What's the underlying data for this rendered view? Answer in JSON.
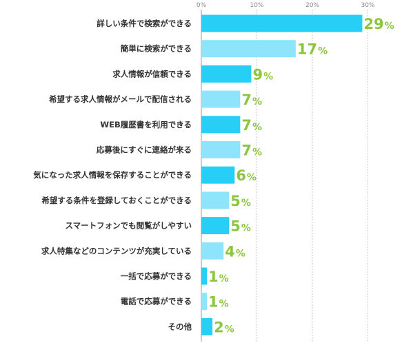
{
  "chart_data": {
    "type": "bar",
    "orientation": "horizontal",
    "categories": [
      "詳しい条件で検索ができる",
      "簡単に検索ができる",
      "求人情報が信頼できる",
      "希望する求人情報がメールで配信される",
      "WEB履歴書を利用できる",
      "応募後にすぐに連絡が来る",
      "気になった求人情報を保存することができる",
      "希望する条件を登録しておくことができる",
      "スマートフォンでも閲覧がしやすい",
      "求人特集などのコンテンツが充実している",
      "一括で応募ができる",
      "電話で応募ができる",
      "その他"
    ],
    "values": [
      29,
      17,
      9,
      7,
      7,
      7,
      6,
      5,
      5,
      4,
      1,
      1,
      2
    ],
    "value_labels": [
      "29",
      "17",
      "9",
      "7",
      "7",
      "7",
      "6",
      "5",
      "5",
      "4",
      "1",
      "1",
      "2"
    ],
    "value_suffix": "%",
    "xlim": [
      0,
      35
    ],
    "x_ticks": [
      0,
      10,
      20,
      30
    ],
    "x_tick_labels": [
      "0%",
      "10%",
      "20%",
      "30%"
    ],
    "grid": true,
    "colors": {
      "bar_odd": "#27cff7",
      "bar_even": "#8ee4fb",
      "label": "#8cc63f",
      "grid": "#c8c8c8",
      "axis": "#999999"
    }
  }
}
